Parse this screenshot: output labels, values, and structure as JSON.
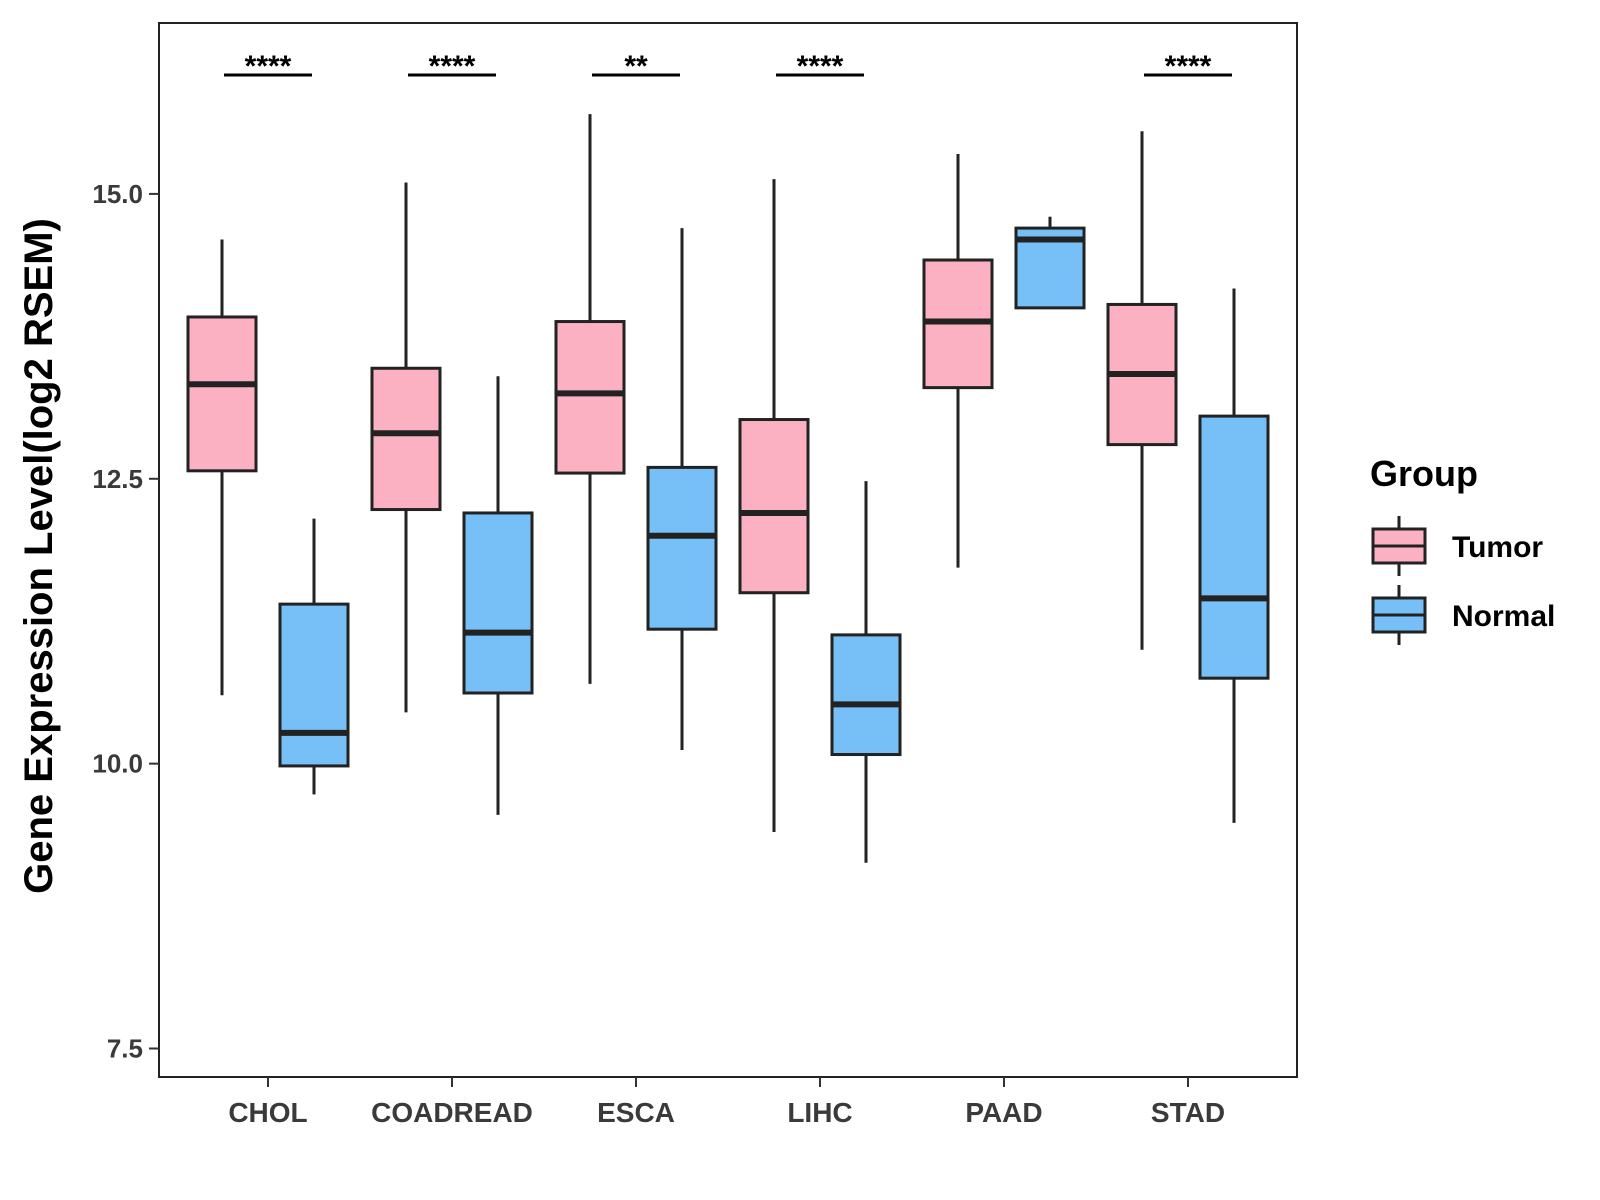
{
  "chart_data": {
    "type": "boxplot",
    "title": "",
    "xlabel": "",
    "ylabel": "Gene Expression Level(log2 RSEM)",
    "ylim": [
      7.25,
      16.5
    ],
    "yticks": [
      7.5,
      10.0,
      12.5,
      15.0
    ],
    "ytick_labels": [
      "7.5",
      "10.0",
      "12.5",
      "15.0"
    ],
    "grid": false,
    "categories": [
      "CHOL",
      "COADREAD",
      "ESCA",
      "LIHC",
      "PAAD",
      "STAD"
    ],
    "legend": {
      "title": "Group",
      "position": "right",
      "entries": [
        {
          "label": "Tumor",
          "color": "#FBB1C2"
        },
        {
          "label": "Normal",
          "color": "#77C0F7"
        }
      ]
    },
    "series": [
      {
        "name": "Tumor",
        "color": "#FBB1C2",
        "boxes": [
          {
            "min": 10.6,
            "q1": 12.57,
            "median": 13.33,
            "q3": 13.92,
            "max": 14.6
          },
          {
            "min": 10.45,
            "q1": 12.23,
            "median": 12.9,
            "q3": 13.47,
            "max": 15.1
          },
          {
            "min": 10.7,
            "q1": 12.55,
            "median": 13.25,
            "q3": 13.88,
            "max": 15.7
          },
          {
            "min": 9.4,
            "q1": 11.5,
            "median": 12.2,
            "q3": 13.02,
            "max": 15.13
          },
          {
            "min": 11.72,
            "q1": 13.3,
            "median": 13.88,
            "q3": 14.42,
            "max": 15.35
          },
          {
            "min": 11.0,
            "q1": 12.8,
            "median": 13.42,
            "q3": 14.03,
            "max": 15.55
          }
        ]
      },
      {
        "name": "Normal",
        "color": "#77C0F7",
        "boxes": [
          {
            "min": 9.73,
            "q1": 9.98,
            "median": 10.27,
            "q3": 11.4,
            "max": 12.15
          },
          {
            "min": 9.55,
            "q1": 10.62,
            "median": 11.15,
            "q3": 12.2,
            "max": 13.4
          },
          {
            "min": 10.12,
            "q1": 11.18,
            "median": 12.0,
            "q3": 12.6,
            "max": 14.7
          },
          {
            "min": 9.13,
            "q1": 10.08,
            "median": 10.52,
            "q3": 11.13,
            "max": 12.48
          },
          {
            "min": 14.0,
            "q1": 14.0,
            "median": 14.6,
            "q3": 14.7,
            "max": 14.8
          },
          {
            "min": 9.48,
            "q1": 10.75,
            "median": 11.45,
            "q3": 13.05,
            "max": 14.17
          }
        ]
      }
    ],
    "significance": [
      "****",
      "****",
      "**",
      "****",
      "",
      "****"
    ]
  }
}
